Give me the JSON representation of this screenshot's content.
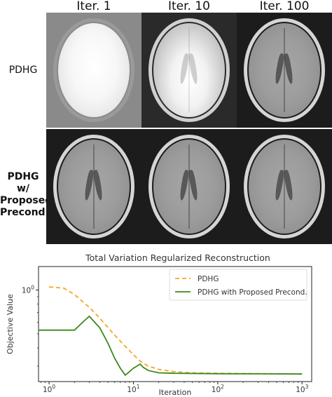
{
  "figure": {
    "columns": [
      "Iter. 1",
      "Iter. 10",
      "Iter. 100"
    ],
    "rows": [
      {
        "label_lines": [
          "PDHG"
        ],
        "bold": false,
        "brightness": [
          "very-high",
          "high",
          "normal"
        ]
      },
      {
        "label_lines": [
          "PDHG w/",
          "Proposed",
          "Precond."
        ],
        "bold": true,
        "brightness": [
          "normal",
          "normal",
          "normal"
        ]
      }
    ]
  },
  "chart_data": {
    "type": "line",
    "title": "Total Variation Regularized Reconstruction",
    "xlabel": "Iteration",
    "ylabel": "Objective Value",
    "xscale": "log",
    "yscale": "log",
    "xlim": [
      0.75,
      1300
    ],
    "ylim": [
      0.235,
      1.45
    ],
    "x_ticks": [
      {
        "v": 1,
        "base": "10",
        "exp": "0"
      },
      {
        "v": 10,
        "base": "10",
        "exp": "1"
      },
      {
        "v": 100,
        "base": "10",
        "exp": "2"
      },
      {
        "v": 1000,
        "base": "10",
        "exp": "3"
      }
    ],
    "y_ticks": [
      {
        "v": 1,
        "base": "10",
        "exp": "0"
      }
    ],
    "legend_position": "top-right",
    "series": [
      {
        "name": "PDHG",
        "color": "#f5a52a",
        "dash": "6,4",
        "x": [
          1,
          1.5,
          2,
          3,
          4,
          6,
          8,
          10,
          12,
          15,
          20,
          30,
          50,
          100,
          1000
        ],
        "y": [
          1.05,
          1.03,
          0.93,
          0.76,
          0.64,
          0.49,
          0.41,
          0.36,
          0.325,
          0.3,
          0.285,
          0.275,
          0.27,
          0.268,
          0.265
        ]
      },
      {
        "name": "PDHG with Proposed Precond.",
        "color": "#3b8a1a",
        "dash": "",
        "x": [
          0.75,
          1,
          1.5,
          2,
          2.5,
          3,
          4,
          5,
          6,
          7,
          8,
          9,
          10,
          11,
          12,
          13,
          15,
          20,
          30,
          100,
          1000
        ],
        "y": [
          0.53,
          0.53,
          0.53,
          0.53,
          0.6,
          0.66,
          0.55,
          0.43,
          0.34,
          0.29,
          0.26,
          0.275,
          0.29,
          0.3,
          0.31,
          0.295,
          0.28,
          0.27,
          0.268,
          0.266,
          0.265
        ]
      }
    ]
  }
}
